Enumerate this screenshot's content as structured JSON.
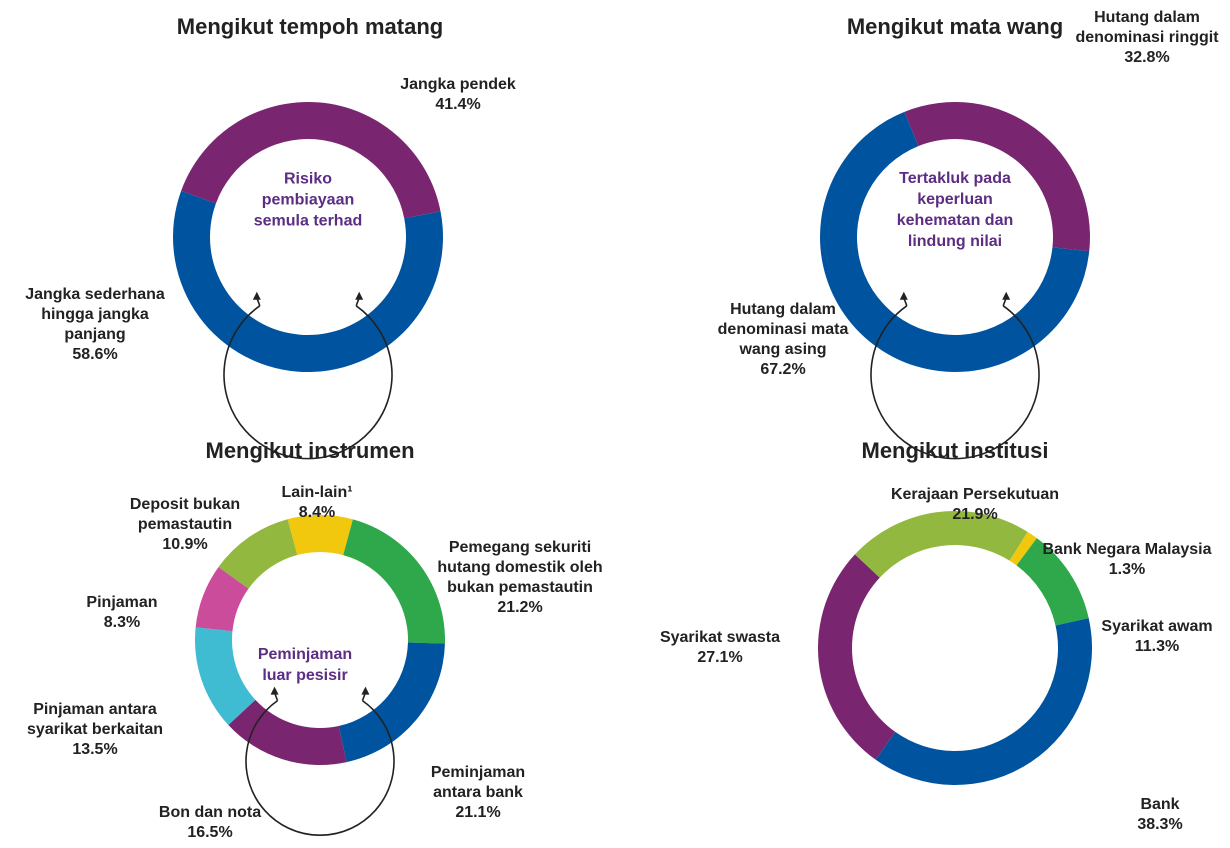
{
  "chart_data": [
    {
      "type": "donut",
      "title": "Mengikut tempoh matang",
      "annotation": "Risiko pembiayaan semula terhad",
      "categories": [
        "Jangka pendek",
        "Jangka sederhana hingga jangka panjang"
      ],
      "values": [
        41.4,
        58.6
      ],
      "value_labels": [
        "41.4%",
        "58.6%"
      ],
      "colors": [
        "#7a2570",
        "#00539f"
      ]
    },
    {
      "type": "donut",
      "title": "Mengikut mata wang",
      "annotation": "Tertakluk pada keperluan kehematan dan lindung nilai",
      "categories": [
        "Hutang dalam denominasi ringgit",
        "Hutang dalam denominasi mata wang asing"
      ],
      "values": [
        32.8,
        67.2
      ],
      "value_labels": [
        "32.8%",
        "67.2%"
      ],
      "colors": [
        "#7a2570",
        "#00539f"
      ]
    },
    {
      "type": "donut",
      "title": "Mengikut instrumen",
      "annotation": "Peminjaman luar pesisir",
      "categories": [
        "Lain-lain¹",
        "Pemegang sekuriti hutang domestik oleh bukan pemastautin",
        "Peminjaman antara bank",
        "Bon dan nota",
        "Pinjaman antara syarikat berkaitan",
        "Pinjaman",
        "Deposit bukan pemastautin"
      ],
      "values": [
        8.4,
        21.2,
        21.1,
        16.5,
        13.5,
        8.3,
        10.9
      ],
      "value_labels": [
        "8.4%",
        "21.2%",
        "21.1%",
        "16.5%",
        "13.5%",
        "8.3%",
        "10.9%"
      ],
      "colors": [
        "#f2c80f",
        "#2ea84a",
        "#00539f",
        "#7a2570",
        "#3fbcd1",
        "#cc4c9c",
        "#93b840"
      ]
    },
    {
      "type": "donut",
      "title": "Mengikut institusi",
      "categories": [
        "Bank Negara Malaysia",
        "Syarikat awam",
        "Bank",
        "Syarikat swasta",
        "Kerajaan Persekutuan"
      ],
      "values": [
        1.3,
        11.3,
        38.3,
        27.1,
        21.9
      ],
      "value_labels": [
        "1.3%",
        "11.3%",
        "38.3%",
        "27.1%",
        "21.9%"
      ],
      "colors": [
        "#f2c80f",
        "#2ea84a",
        "#00539f",
        "#7a2570",
        "#93b840"
      ]
    }
  ]
}
